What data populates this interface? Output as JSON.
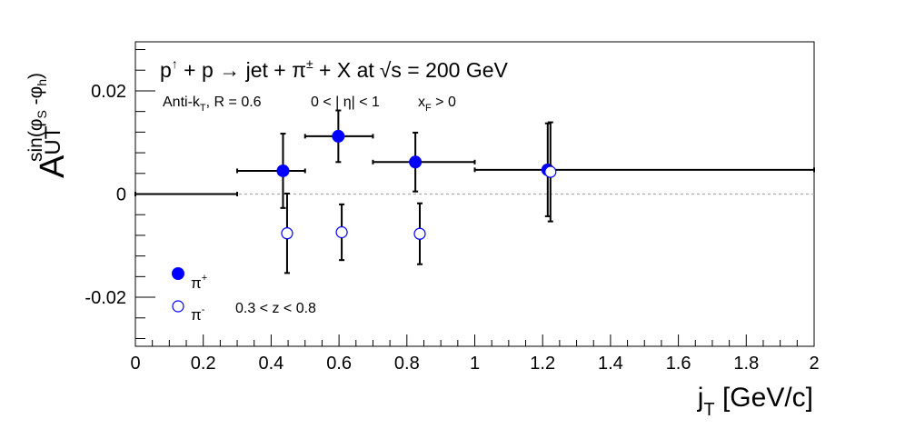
{
  "chart_data": {
    "type": "scatter",
    "title": "p↑ + p → jet + π± + X at √s = 200 GeV",
    "title_parts": {
      "p": "p",
      "up_arrow": "↑",
      "plus_p_to_jet_plus_pi": " + p → jet + π",
      "pm": "±",
      "plus_x_at": " + X at",
      "sqrt": "√",
      "s_eq": "s = 200 GeV"
    },
    "subtitle_parts": {
      "antik": "Anti-k",
      "antik_sub": "T",
      "r": ", R = 0.6",
      "eta": "0 < | η| < 1",
      "xf": "x",
      "xf_sub": "F",
      "xf_gt": " > 0"
    },
    "xlabel": "j",
    "xlabel_sub": "T",
    "xlabel_unit": " [GeV/c]",
    "ylabel": "A",
    "ylabel_sub": "UT",
    "ylabel_sup": "sin(φ",
    "ylabel_sup_s": "S",
    "ylabel_sup_mid": " -φ",
    "ylabel_sup_h": "h",
    "ylabel_sup_end": ")",
    "xlim": [
      0,
      2
    ],
    "ylim": [
      -0.0295,
      0.0295
    ],
    "x_ticks": [
      "0",
      "0.2",
      "0.4",
      "0.6",
      "0.8",
      "1",
      "1.2",
      "1.4",
      "1.6",
      "1.8",
      "2"
    ],
    "y_ticks": [
      "-0.02",
      "0",
      "0.02"
    ],
    "zero_line": true,
    "legend": {
      "placement": "bottom-left",
      "pi_plus_base": "π",
      "pi_plus_sup": "+",
      "pi_minus_base": "π",
      "pi_minus_sup": "-",
      "z_range": "0.3 < z < 0.8"
    },
    "series": [
      {
        "name": "π+",
        "marker": "filled",
        "color": "#0000ff",
        "points": [
          {
            "x": 0.15,
            "y": 0.0,
            "xerr_lo": 0.15,
            "xerr_hi": 0.15,
            "yerr": 0.0
          },
          {
            "x": 0.435,
            "y": 0.0045,
            "xerr_lo": 0.135,
            "xerr_hi": 0.065,
            "yerr": 0.0072
          },
          {
            "x": 0.598,
            "y": 0.0112,
            "xerr_lo": 0.098,
            "xerr_hi": 0.102,
            "yerr": 0.005
          },
          {
            "x": 0.825,
            "y": 0.0062,
            "xerr_lo": 0.125,
            "xerr_hi": 0.175,
            "yerr": 0.0057
          },
          {
            "x": 1.215,
            "y": 0.0047,
            "xerr_lo": 0.215,
            "xerr_hi": 0.785,
            "yerr": 0.009
          }
        ]
      },
      {
        "name": "π-",
        "marker": "open",
        "color": "#0000ff",
        "points": [
          {
            "x": 0.447,
            "y": -0.0076,
            "yerr": 0.0077
          },
          {
            "x": 0.608,
            "y": -0.0074,
            "yerr": 0.0054
          },
          {
            "x": 0.838,
            "y": -0.0077,
            "yerr": 0.0059
          },
          {
            "x": 1.223,
            "y": 0.0043,
            "yerr": 0.0096
          }
        ]
      }
    ]
  }
}
